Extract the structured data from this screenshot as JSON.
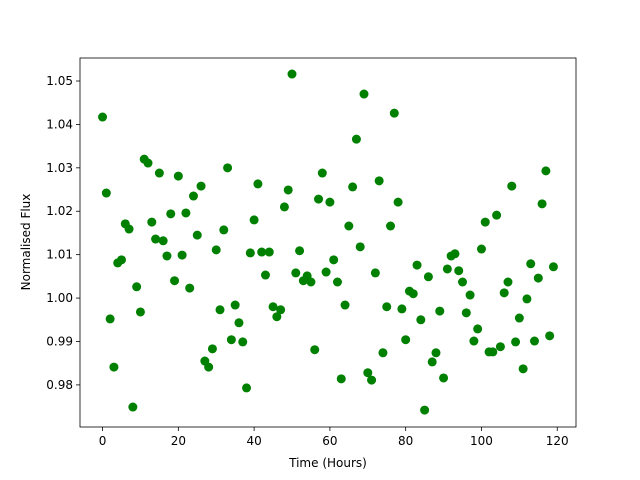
{
  "chart_data": {
    "type": "scatter",
    "x_label": "Time (Hours)",
    "y_label": "Normalised Flux",
    "color": "#008000",
    "x": [
      0,
      1,
      2,
      3,
      4,
      5,
      6,
      7,
      8,
      9,
      10,
      11,
      12,
      13,
      14,
      15,
      16,
      17,
      18,
      19,
      20,
      21,
      22,
      23,
      24,
      25,
      26,
      27,
      28,
      29,
      30,
      31,
      32,
      33,
      34,
      35,
      36,
      37,
      38,
      39,
      40,
      41,
      42,
      43,
      44,
      45,
      46,
      47,
      48,
      49,
      50,
      51,
      52,
      53,
      54,
      55,
      56,
      57,
      58,
      59,
      60,
      61,
      62,
      63,
      64,
      65,
      66,
      67,
      68,
      69,
      70,
      71,
      72,
      73,
      74,
      75,
      76,
      77,
      78,
      79,
      80,
      81,
      82,
      83,
      84,
      85,
      86,
      87,
      88,
      89,
      90,
      91,
      92,
      93,
      94,
      95,
      96,
      97,
      98,
      99,
      100,
      101,
      102,
      103,
      104,
      105,
      106,
      107,
      108,
      109,
      110,
      111,
      112,
      113,
      114,
      115,
      116,
      117,
      118,
      119
    ],
    "values": [
      1.0417,
      1.0242,
      0.9952,
      0.9841,
      1.0081,
      1.0088,
      1.0171,
      1.0159,
      0.9749,
      1.0026,
      0.9968,
      1.032,
      1.0311,
      1.0175,
      1.0136,
      1.0288,
      1.0132,
      1.0097,
      1.0194,
      1.004,
      1.0281,
      1.0099,
      1.0196,
      1.0023,
      1.0235,
      1.0145,
      1.0258,
      0.9855,
      0.9841,
      0.9883,
      1.0111,
      0.9973,
      1.0157,
      1.03,
      0.9904,
      0.9984,
      0.9943,
      0.9899,
      0.9793,
      1.0104,
      1.018,
      1.0263,
      1.0106,
      1.0053,
      1.0106,
      0.998,
      0.9957,
      0.9973,
      1.021,
      1.0249,
      1.0516,
      1.0058,
      1.0109,
      1.004,
      1.0051,
      1.0037,
      0.9881,
      1.0228,
      1.0288,
      1.006,
      1.0221,
      1.0088,
      1.0037,
      0.9814,
      0.9984,
      1.0166,
      1.0256,
      1.0366,
      1.0118,
      1.047,
      0.9828,
      0.9811,
      1.0058,
      1.027,
      0.9874,
      0.998,
      1.0166,
      1.0426,
      1.0221,
      0.9975,
      0.9904,
      1.0016,
      1.001,
      1.0076,
      0.995,
      0.9742,
      1.0049,
      0.9853,
      0.9874,
      0.997,
      0.9816,
      1.0067,
      1.0097,
      1.0102,
      1.0063,
      1.0037,
      0.9966,
      1.0007,
      0.9901,
      0.9929,
      1.0113,
      1.0175,
      0.9876,
      0.9876,
      1.0191,
      0.9888,
      1.0012,
      1.0037,
      1.0258,
      0.9899,
      0.9954,
      0.9837,
      0.9998,
      1.0079,
      0.9901,
      1.0046,
      1.0217,
      1.0293,
      0.9913,
      1.0072
    ],
    "xlim": [
      -5.95,
      124.95
    ],
    "ylim": [
      0.9703,
      1.0553
    ],
    "xticks": [
      0,
      20,
      40,
      60,
      80,
      100,
      120
    ],
    "yticks": [
      0.98,
      0.99,
      {
        "value": 1.0,
        "label": "1.00"
      },
      1.01,
      1.02,
      1.03,
      1.04,
      1.05
    ]
  }
}
